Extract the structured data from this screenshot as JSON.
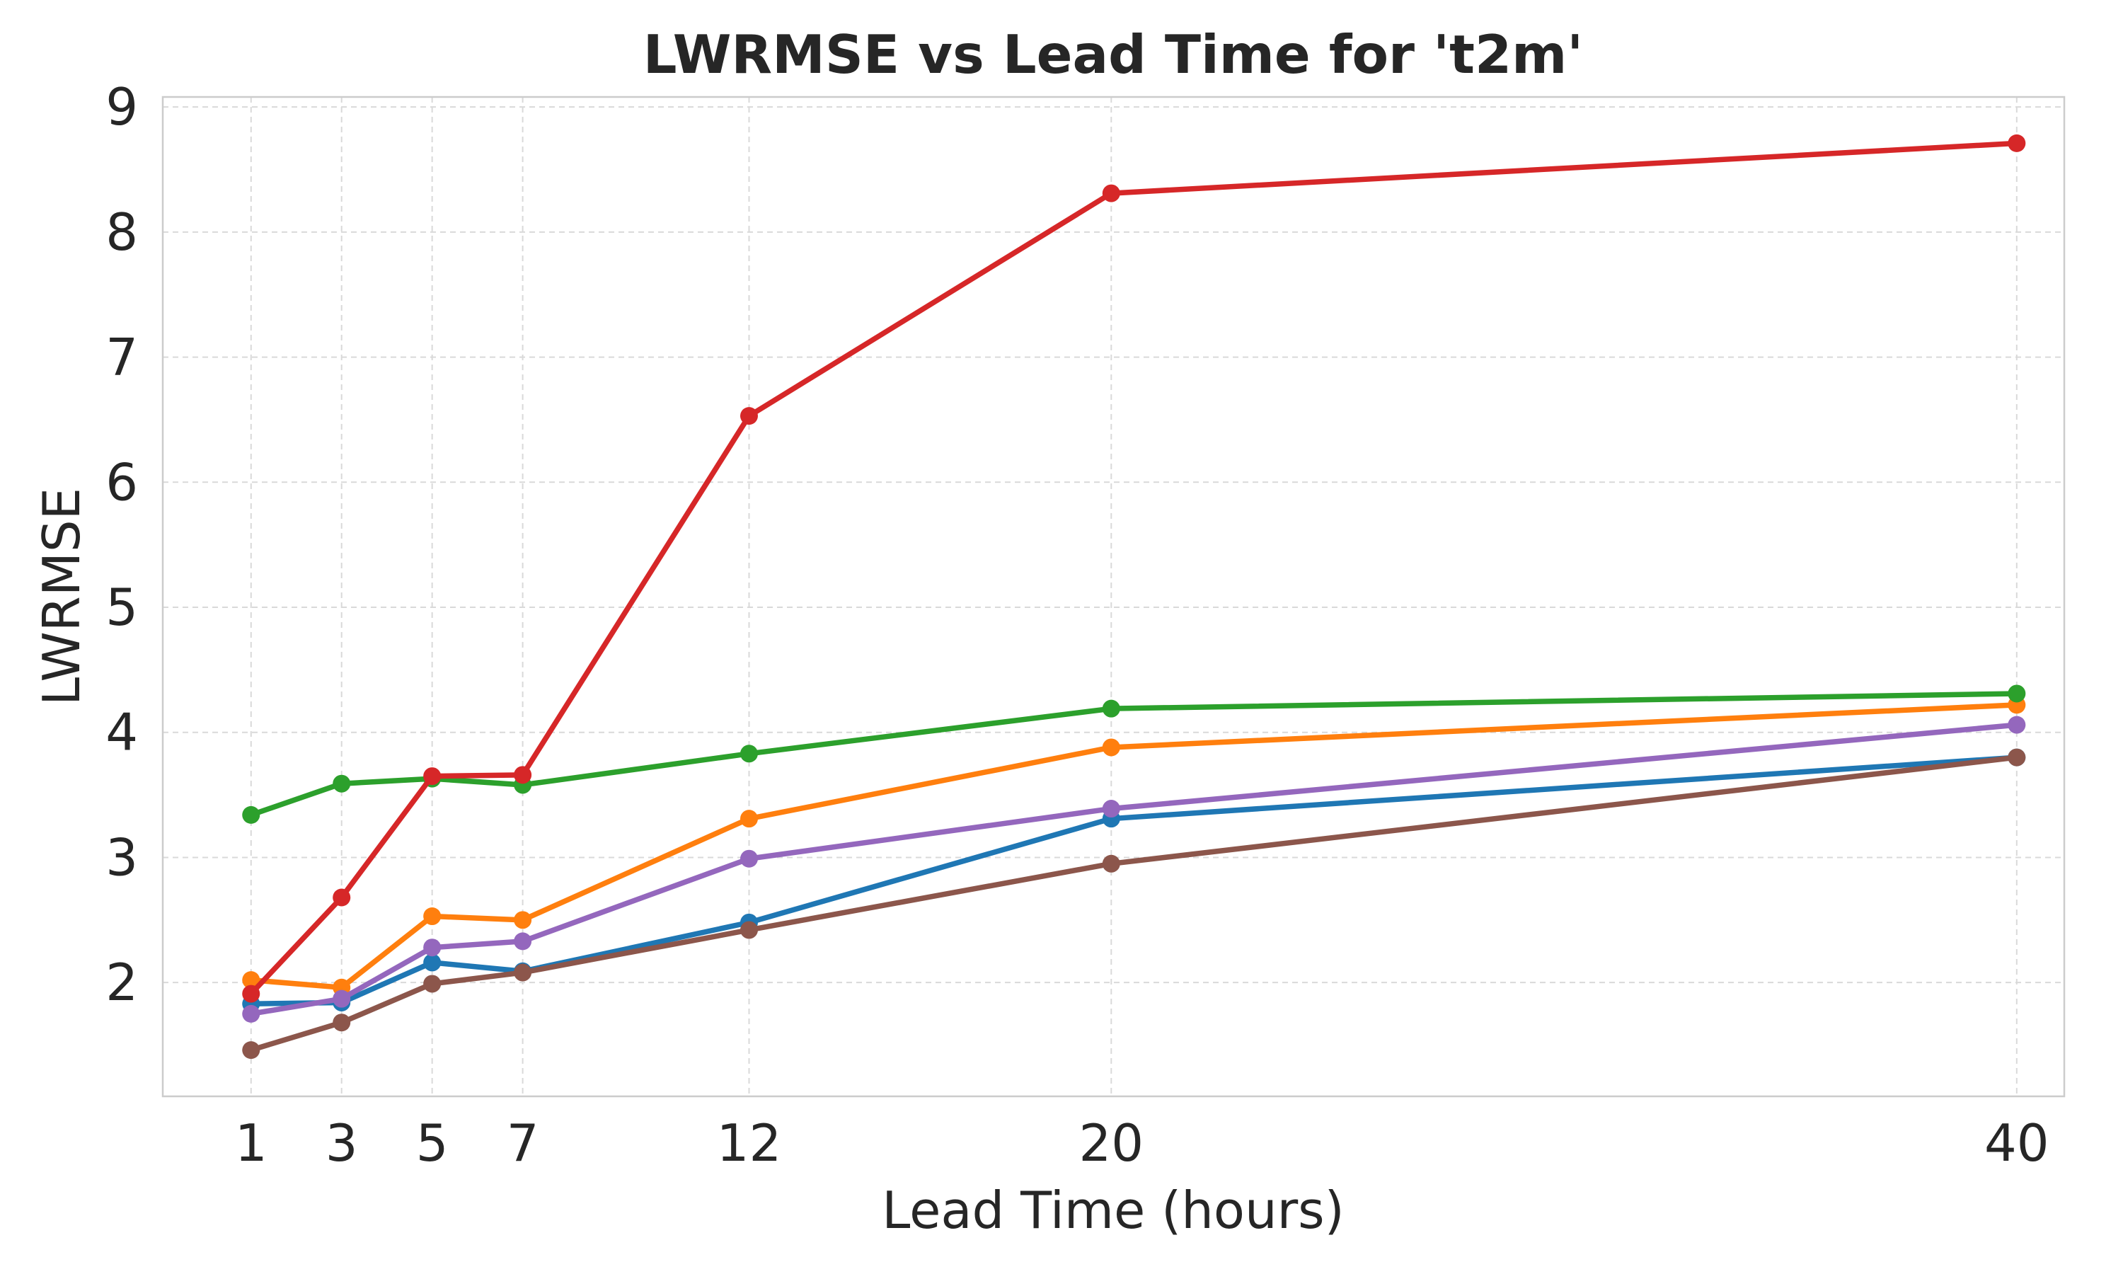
{
  "chart_data": {
    "type": "line",
    "title": "LWRMSE vs Lead Time for 't2m'",
    "xlabel": "Lead Time (hours)",
    "ylabel": "LWRMSE",
    "x": [
      1,
      3,
      5,
      7,
      12,
      20,
      40
    ],
    "x_ticks": [
      "1",
      "3",
      "5",
      "7",
      "12",
      "20",
      "40"
    ],
    "y_ticks": [
      "2",
      "3",
      "4",
      "5",
      "6",
      "7",
      "8",
      "9"
    ],
    "xlim": [
      -0.95,
      41.05
    ],
    "ylim": [
      1.09,
      9.08
    ],
    "grid": true,
    "legend": "none",
    "series": [
      {
        "color": "#1f77b4",
        "values": [
          1.83,
          1.84,
          2.16,
          2.09,
          2.48,
          3.31,
          3.8
        ]
      },
      {
        "color": "#ff7f0e",
        "values": [
          2.02,
          1.96,
          2.53,
          2.5,
          3.31,
          3.88,
          4.22
        ]
      },
      {
        "color": "#2ca02c",
        "values": [
          3.34,
          3.59,
          3.63,
          3.58,
          3.83,
          4.19,
          4.31
        ]
      },
      {
        "color": "#d62728",
        "values": [
          1.91,
          2.68,
          3.65,
          3.66,
          6.53,
          8.31,
          8.71
        ]
      },
      {
        "color": "#9467bd",
        "values": [
          1.75,
          1.87,
          2.28,
          2.33,
          2.99,
          3.39,
          4.06
        ]
      },
      {
        "color": "#8c564b",
        "values": [
          1.46,
          1.68,
          1.99,
          2.08,
          2.42,
          2.95,
          3.8
        ]
      }
    ]
  }
}
